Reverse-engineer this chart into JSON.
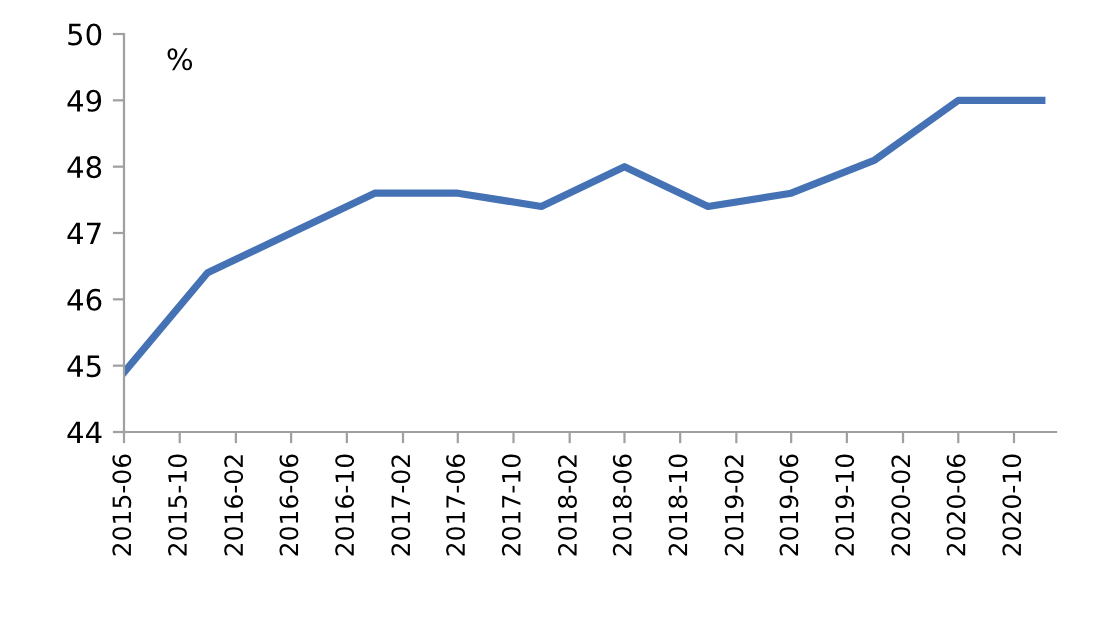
{
  "chart_data": {
    "type": "line",
    "ylabel": "%",
    "x": [
      "2015-06",
      "2015-12",
      "2016-06",
      "2016-12",
      "2017-06",
      "2017-12",
      "2018-06",
      "2018-12",
      "2019-06",
      "2019-12",
      "2020-06",
      "2020-12"
    ],
    "series": [
      {
        "color": "#4472b4",
        "values": [
          44.9,
          46.4,
          47.0,
          47.6,
          47.6,
          47.4,
          48.0,
          47.4,
          47.6,
          48.1,
          49.0,
          49.0
        ]
      }
    ],
    "xlim": [
      "2015-06",
      "2021-01"
    ],
    "xticks": [
      "2015-06",
      "2015-10",
      "2016-02",
      "2016-06",
      "2016-10",
      "2017-02",
      "2017-06",
      "2017-10",
      "2018-02",
      "2018-06",
      "2018-10",
      "2019-02",
      "2019-06",
      "2019-10",
      "2020-02",
      "2020-06",
      "2020-10"
    ],
    "ylim": [
      44,
      50
    ],
    "yticks": [
      44,
      45,
      46,
      47,
      48,
      49,
      50
    ],
    "grid": false,
    "marker": "none",
    "line_style": "solid"
  }
}
